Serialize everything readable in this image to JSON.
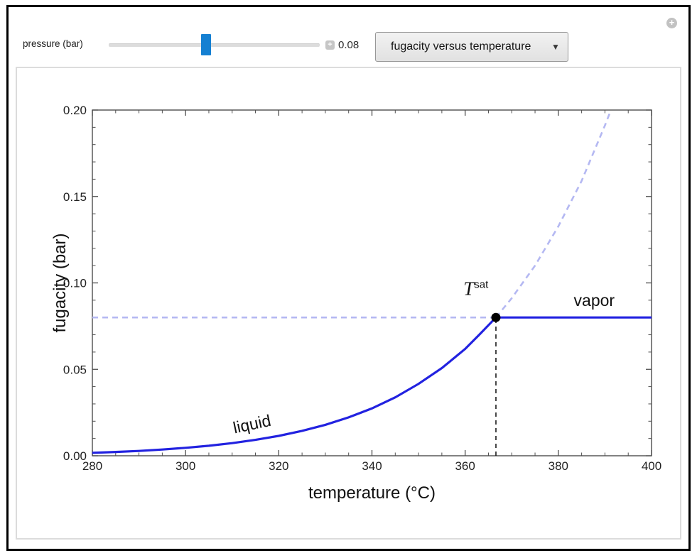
{
  "window": {
    "expand_icon": "+"
  },
  "controls": {
    "slider": {
      "label": "pressure (bar)",
      "value": "0.08",
      "stepper_icon": "+"
    },
    "dropdown": {
      "selected": "fugacity versus temperature",
      "arrow": "▼"
    }
  },
  "chart_data": {
    "type": "line",
    "xlabel": "temperature (°C)",
    "ylabel": "fugacity (bar)",
    "xlim": [
      280,
      400
    ],
    "ylim": [
      0,
      0.2
    ],
    "x_major_ticks": [
      280,
      300,
      320,
      340,
      360,
      380,
      400
    ],
    "x_tick_labels": [
      "280",
      "300",
      "320",
      "340",
      "360",
      "380",
      "400"
    ],
    "x_minor_step": 5,
    "y_major_ticks": [
      0,
      0.05,
      0.1,
      0.15,
      0.2
    ],
    "y_tick_labels": [
      "0.00",
      "0.05",
      "0.10",
      "0.15",
      "0.20"
    ],
    "y_minor_step": 0.01,
    "grid": false,
    "legend": "none",
    "saturation_point": {
      "x": 366.6,
      "y": 0.08,
      "color": "#000000",
      "radius": 6.5
    },
    "series": [
      {
        "name": "saturation-fugacity-guide",
        "color": "#b4b8f2",
        "width": 2.6,
        "dash": "8 6",
        "points": [
          [
            280,
            0.08
          ],
          [
            366.6,
            0.08
          ]
        ]
      },
      {
        "name": "liquid-extension-dashed",
        "color": "#b4b8f2",
        "width": 2.6,
        "dash": "8 6",
        "points": [
          [
            366.6,
            0.08
          ],
          [
            370,
            0.0912
          ],
          [
            375,
            0.11
          ],
          [
            380,
            0.1327
          ],
          [
            385,
            0.159
          ],
          [
            390,
            0.1911
          ],
          [
            391.3,
            0.2
          ]
        ]
      },
      {
        "name": "tsat-vertical-guide",
        "color": "#1a1a1a",
        "width": 1.6,
        "dash": "6 5",
        "points": [
          [
            366.6,
            0.0
          ],
          [
            366.6,
            0.08
          ]
        ]
      },
      {
        "name": "liquid",
        "color": "#2222e0",
        "width": 3.2,
        "points": [
          [
            280,
            0.0017
          ],
          [
            285,
            0.0022
          ],
          [
            290,
            0.0028
          ],
          [
            295,
            0.0036
          ],
          [
            300,
            0.0046
          ],
          [
            305,
            0.0058
          ],
          [
            310,
            0.0073
          ],
          [
            315,
            0.0092
          ],
          [
            320,
            0.0115
          ],
          [
            325,
            0.0144
          ],
          [
            330,
            0.0179
          ],
          [
            335,
            0.0222
          ],
          [
            340,
            0.0274
          ],
          [
            345,
            0.0338
          ],
          [
            350,
            0.0416
          ],
          [
            355,
            0.0507
          ],
          [
            360,
            0.0618
          ],
          [
            363,
            0.0699
          ],
          [
            366.6,
            0.08
          ]
        ]
      },
      {
        "name": "vapor",
        "color": "#2222e0",
        "width": 3.2,
        "points": [
          [
            366.6,
            0.08
          ],
          [
            400,
            0.08
          ]
        ]
      }
    ],
    "annotations": [
      {
        "id": "liquid-label",
        "text": "liquid",
        "x": 314.5,
        "y": 0.0152,
        "size": 23,
        "rotate": -12
      },
      {
        "id": "vapor-label",
        "text": "vapor",
        "x": 387.7,
        "y": 0.0866,
        "size": 23,
        "rotate": 0
      },
      {
        "id": "tsat-label",
        "base": "T",
        "sup": "sat",
        "x": 362.3,
        "y": 0.093,
        "size": 22
      }
    ],
    "colors": {
      "frame": "#4d4d4d",
      "tick_text": "#222222",
      "label_text": "#111111"
    }
  }
}
